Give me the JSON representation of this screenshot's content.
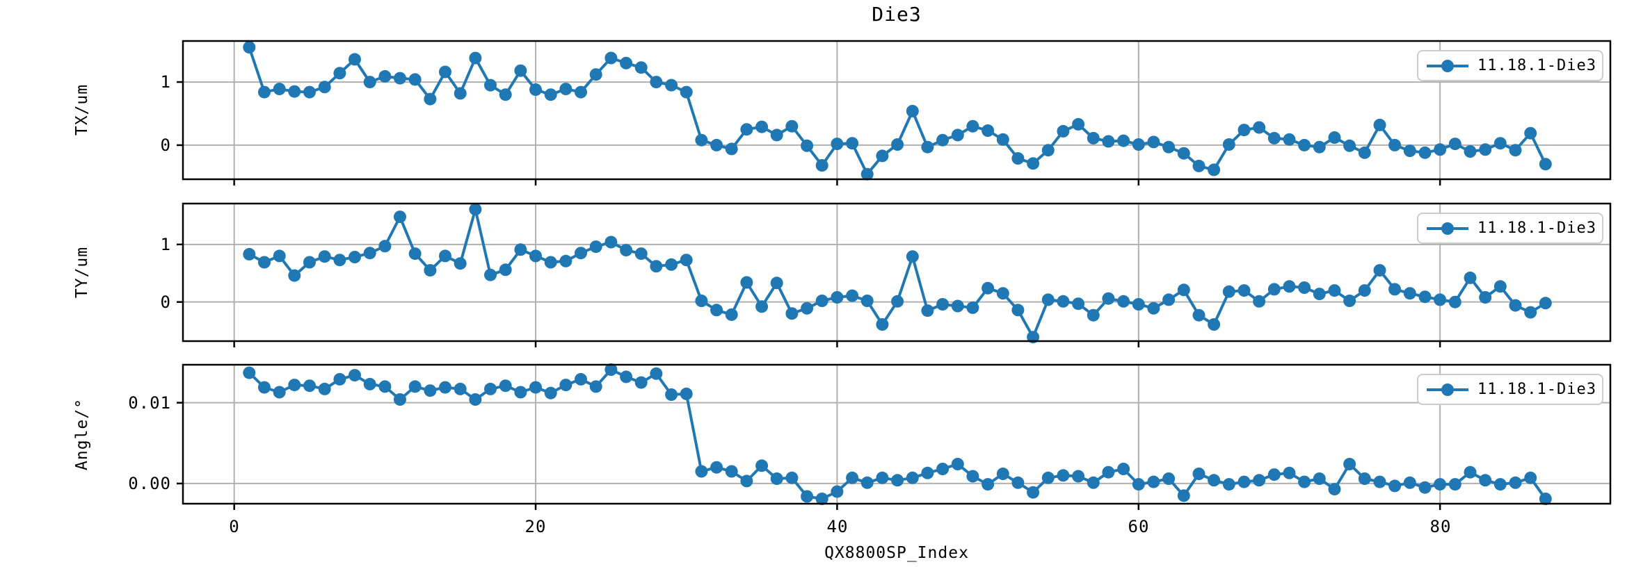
{
  "title": "Die3",
  "legend_label": "11.18.1-Die3",
  "colors": {
    "series": "#1f77b4",
    "grid": "#b0b0b0",
    "spine": "#000000",
    "legend_border": "#cccccc"
  },
  "x_axis": {
    "label": "QX8800SP_Index",
    "ticks": [
      {
        "label": "0",
        "value": 0
      },
      {
        "label": "20",
        "value": 20
      },
      {
        "label": "40",
        "value": 40
      },
      {
        "label": "60",
        "value": 60
      },
      {
        "label": "80",
        "value": 80
      }
    ]
  },
  "chart_data": [
    {
      "type": "line",
      "name": "TX",
      "title": "Die3",
      "ylabel": "TX/um",
      "legend": "11.18.1-Die3",
      "legend_position": "upper right",
      "grid": true,
      "x_start": 1,
      "x_step": 1,
      "xlim": [
        -3.4,
        91.3
      ],
      "ylim": [
        -0.54,
        1.65
      ],
      "yticks": [
        {
          "label": "1",
          "value": 1
        },
        {
          "label": "0",
          "value": 0
        }
      ],
      "values": [
        1.55,
        0.84,
        0.89,
        0.85,
        0.84,
        0.92,
        1.14,
        1.36,
        1.0,
        1.09,
        1.06,
        1.04,
        0.73,
        1.16,
        0.82,
        1.38,
        0.95,
        0.8,
        1.18,
        0.88,
        0.8,
        0.89,
        0.84,
        1.12,
        1.38,
        1.3,
        1.23,
        1.0,
        0.95,
        0.84,
        0.08,
        0.0,
        -0.06,
        0.25,
        0.29,
        0.16,
        0.3,
        -0.01,
        -0.32,
        0.02,
        0.03,
        -0.46,
        -0.17,
        0.01,
        0.54,
        -0.03,
        0.08,
        0.16,
        0.3,
        0.23,
        0.09,
        -0.21,
        -0.29,
        -0.08,
        0.22,
        0.33,
        0.11,
        0.06,
        0.07,
        0.01,
        0.05,
        -0.03,
        -0.13,
        -0.33,
        -0.39,
        0.01,
        0.24,
        0.28,
        0.11,
        0.09,
        0.0,
        -0.03,
        0.12,
        -0.01,
        -0.12,
        0.32,
        0.0,
        -0.09,
        -0.12,
        -0.07,
        0.02,
        -0.1,
        -0.07,
        0.03,
        -0.08,
        0.19,
        -0.3
      ]
    },
    {
      "type": "line",
      "name": "TY",
      "title": "Die3",
      "ylabel": "TY/um",
      "legend": "11.18.1-Die3",
      "legend_position": "upper right",
      "grid": true,
      "x_start": 1,
      "x_step": 1,
      "xlim": [
        -3.4,
        91.3
      ],
      "ylim": [
        -0.68,
        1.71
      ],
      "yticks": [
        {
          "label": "1",
          "value": 1
        },
        {
          "label": "0",
          "value": 0
        }
      ],
      "values": [
        0.83,
        0.69,
        0.8,
        0.46,
        0.69,
        0.79,
        0.73,
        0.78,
        0.85,
        0.97,
        1.48,
        0.84,
        0.55,
        0.8,
        0.67,
        1.61,
        0.47,
        0.56,
        0.91,
        0.8,
        0.69,
        0.71,
        0.85,
        0.96,
        1.04,
        0.9,
        0.84,
        0.62,
        0.65,
        0.73,
        0.02,
        -0.14,
        -0.22,
        0.34,
        -0.08,
        0.33,
        -0.2,
        -0.11,
        0.02,
        0.08,
        0.11,
        0.02,
        -0.39,
        0.01,
        0.79,
        -0.15,
        -0.04,
        -0.07,
        -0.1,
        0.24,
        0.15,
        -0.14,
        -0.61,
        0.04,
        0.01,
        -0.03,
        -0.23,
        0.06,
        0.01,
        -0.04,
        -0.11,
        0.04,
        0.21,
        -0.23,
        -0.39,
        0.18,
        0.2,
        0.01,
        0.22,
        0.27,
        0.25,
        0.14,
        0.2,
        0.02,
        0.2,
        0.55,
        0.22,
        0.15,
        0.09,
        0.04,
        0.0,
        0.42,
        0.08,
        0.27,
        -0.06,
        -0.18,
        -0.02
      ]
    },
    {
      "type": "line",
      "name": "Angle",
      "title": "Die3",
      "ylabel": "Angle/°",
      "legend": "11.18.1-Die3",
      "legend_position": "upper right",
      "grid": true,
      "x_start": 1,
      "x_step": 1,
      "xlim": [
        -3.4,
        91.3
      ],
      "ylim": [
        -0.0025,
        0.0147
      ],
      "yticks": [
        {
          "label": "0.01",
          "value": 0.01
        },
        {
          "label": "0.00",
          "value": 0.0
        }
      ],
      "values": [
        0.0137,
        0.0119,
        0.0113,
        0.0122,
        0.0121,
        0.0117,
        0.0129,
        0.0134,
        0.0123,
        0.012,
        0.0104,
        0.012,
        0.0115,
        0.0119,
        0.0117,
        0.0104,
        0.0117,
        0.0121,
        0.0113,
        0.0119,
        0.0112,
        0.0122,
        0.0129,
        0.012,
        0.0141,
        0.0132,
        0.0125,
        0.0136,
        0.011,
        0.0111,
        0.0015,
        0.002,
        0.0015,
        0.0003,
        0.0022,
        0.0006,
        0.0007,
        -0.0016,
        -0.0019,
        -0.001,
        0.0007,
        0.0001,
        0.0007,
        0.0004,
        0.0007,
        0.0013,
        0.0018,
        0.0024,
        0.0009,
        -0.0001,
        0.0012,
        0.0001,
        -0.0011,
        0.0007,
        0.001,
        0.0009,
        0.0001,
        0.0014,
        0.0018,
        -0.0001,
        0.0002,
        0.0006,
        -0.0015,
        0.0012,
        0.0004,
        -0.0001,
        0.0002,
        0.0004,
        0.0011,
        0.0013,
        0.0002,
        0.0006,
        -0.0007,
        0.0024,
        0.0006,
        0.0002,
        -0.0003,
        0.0001,
        -0.0005,
        -0.0001,
        -0.0001,
        0.0014,
        0.0004,
        -0.0001,
        0.0001,
        0.0007,
        -0.0019
      ]
    }
  ]
}
